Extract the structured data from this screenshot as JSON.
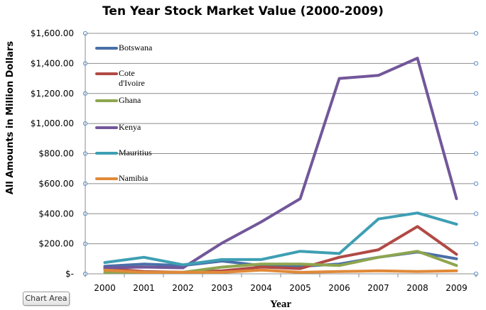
{
  "colors": {
    "Botswana": "#4a6fa8",
    "Cote d'Ivoire": "#b14a45",
    "Ghana": "#8ea54f",
    "Kenya": "#72579a",
    "Mauritius": "#3e9fb3",
    "Namibia": "#e08a3a",
    "grid": "#8c8c8c"
  },
  "ui": {
    "chart_area_label": "Chart Area"
  },
  "chart_data": {
    "type": "line",
    "title": "Ten Year Stock Market Value (2000-2009)",
    "xlabel": "Year",
    "ylabel": "All Amounts in  Million Dollars",
    "categories": [
      "2000",
      "2001",
      "2002",
      "2003",
      "2004",
      "2005",
      "2006",
      "2007",
      "2008",
      "2009"
    ],
    "ylim": [
      0,
      1600
    ],
    "yticks": [
      {
        "value": 0,
        "label": "$-"
      },
      {
        "value": 200,
        "label": "$200.00"
      },
      {
        "value": 400,
        "label": "$400.00"
      },
      {
        "value": 600,
        "label": "$600.00"
      },
      {
        "value": 800,
        "label": "$800.00"
      },
      {
        "value": 1000,
        "label": "$1,000.00"
      },
      {
        "value": 1200,
        "label": "$1,200.00"
      },
      {
        "value": 1400,
        "label": "$1,400.00"
      },
      {
        "value": 1600,
        "label": "$1,600.00"
      }
    ],
    "legend_position": "left-inside",
    "series": [
      {
        "name": "Botswana",
        "legend_lines": [
          "Botswana"
        ],
        "values": [
          50,
          65,
          55,
          85,
          55,
          50,
          65,
          110,
          145,
          100
        ]
      },
      {
        "name": "Cote d'Ivoire",
        "legend_lines": [
          "Cote",
          "d'Ivoire"
        ],
        "values": [
          35,
          15,
          10,
          20,
          45,
          35,
          110,
          160,
          315,
          130
        ]
      },
      {
        "name": "Ghana",
        "legend_lines": [
          "Ghana"
        ],
        "values": [
          10,
          10,
          10,
          45,
          65,
          65,
          55,
          110,
          150,
          55
        ]
      },
      {
        "name": "Kenya",
        "legend_lines": [
          "Kenya"
        ],
        "values": [
          40,
          45,
          40,
          205,
          345,
          500,
          1300,
          1320,
          1435,
          500
        ]
      },
      {
        "name": "Mauritius",
        "legend_lines": [
          "Mauritius"
        ],
        "values": [
          75,
          110,
          60,
          95,
          95,
          150,
          135,
          365,
          405,
          330
        ]
      },
      {
        "name": "Namibia",
        "legend_lines": [
          "Namibia"
        ],
        "values": [
          25,
          10,
          10,
          10,
          25,
          10,
          15,
          20,
          15,
          20
        ]
      }
    ]
  }
}
